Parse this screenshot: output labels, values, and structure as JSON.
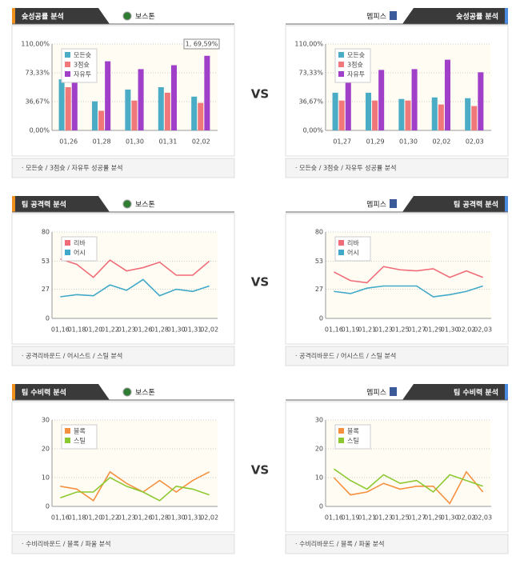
{
  "vs_label": "VS",
  "chart_data": [
    {
      "type": "bar",
      "title": "슛성공률 분석",
      "team": "보스톤",
      "footnote": "· 모든슛 / 3점슛 / 자유투 성공률 분석",
      "categories": [
        "01,26",
        "01,28",
        "01,30",
        "01,31",
        "02,02"
      ],
      "series": [
        {
          "name": "모든슛",
          "color": "#4bacc6",
          "values": [
            65,
            37,
            52,
            55,
            43
          ]
        },
        {
          "name": "3점슛",
          "color": "#f0787a",
          "values": [
            55,
            25,
            38,
            48,
            35
          ]
        },
        {
          "name": "자유투",
          "color": "#a040c8",
          "values": [
            62,
            88,
            78,
            83,
            95
          ]
        }
      ],
      "ylim": [
        0,
        110
      ],
      "yticks": [
        {
          "value": 0,
          "label": "0,00%"
        },
        {
          "value": 36.67,
          "label": "36,67%"
        },
        {
          "value": 73.33,
          "label": "73,33%"
        },
        {
          "value": 110,
          "label": "110,00%"
        }
      ],
      "annotation": "1, 69,59%"
    },
    {
      "type": "bar",
      "title": "슛성공률 분석",
      "team": "멤피스",
      "footnote": "· 모든슛 / 3점슛 / 자유투 성공률 분석",
      "categories": [
        "01,27",
        "01,29",
        "01,30",
        "02,02",
        "02,03"
      ],
      "series": [
        {
          "name": "모든슛",
          "color": "#4bacc6",
          "values": [
            48,
            48,
            40,
            42,
            41
          ]
        },
        {
          "name": "3점슛",
          "color": "#f0787a",
          "values": [
            38,
            38,
            38,
            33,
            31
          ]
        },
        {
          "name": "자유투",
          "color": "#a040c8",
          "values": [
            66,
            77,
            78,
            90,
            74
          ]
        }
      ],
      "ylim": [
        0,
        110
      ],
      "yticks": [
        {
          "value": 0,
          "label": "0,00%"
        },
        {
          "value": 36.67,
          "label": "36,67%"
        },
        {
          "value": 73.33,
          "label": "73,33%"
        },
        {
          "value": 110,
          "label": "110,00%"
        }
      ]
    },
    {
      "type": "line",
      "title": "팀 공격력 분석",
      "team": "보스톤",
      "footnote": "· 공격리바운드 / 어시스트 / 스틸 분석",
      "categories": [
        "01,16",
        "01,18",
        "01,20",
        "01,22",
        "01,23",
        "01,26",
        "01,28",
        "01,30",
        "01,31",
        "02,02"
      ],
      "series": [
        {
          "name": "리바",
          "color": "#f06c78",
          "values": [
            55,
            50,
            38,
            54,
            44,
            47,
            52,
            40,
            40,
            53
          ]
        },
        {
          "name": "어시",
          "color": "#40a8c8",
          "values": [
            20,
            22,
            21,
            31,
            26,
            36,
            21,
            27,
            25,
            30
          ]
        }
      ],
      "ylim": [
        0,
        80
      ],
      "yticks": [
        0,
        27,
        53,
        80
      ]
    },
    {
      "type": "line",
      "title": "팀 공격력 분석",
      "team": "멤피스",
      "footnote": "· 공격리바운드 / 어시스트 / 스틸 분석",
      "categories": [
        "01,16",
        "01,19",
        "01,21",
        "01,23",
        "01,25",
        "01,27",
        "01,29",
        "01,30",
        "02,02",
        "02,03"
      ],
      "series": [
        {
          "name": "리바",
          "color": "#f06c78",
          "values": [
            43,
            35,
            33,
            48,
            45,
            44,
            46,
            38,
            44,
            38
          ]
        },
        {
          "name": "어시",
          "color": "#40a8c8",
          "values": [
            25,
            23,
            28,
            30,
            30,
            30,
            20,
            22,
            25,
            30
          ]
        }
      ],
      "ylim": [
        0,
        80
      ],
      "yticks": [
        0,
        27,
        53,
        80
      ]
    },
    {
      "type": "line",
      "title": "팀 수비력 분석",
      "team": "보스톤",
      "footnote": "· 수비리바운드 / 블록 / 파울 분석",
      "categories": [
        "01,16",
        "01,18",
        "01,20",
        "01,22",
        "01,23",
        "01,26",
        "01,28",
        "01,30",
        "01,31",
        "02,02"
      ],
      "series": [
        {
          "name": "블록",
          "color": "#f59040",
          "values": [
            7,
            6,
            2,
            12,
            8,
            5,
            9,
            5,
            9,
            12
          ]
        },
        {
          "name": "스틸",
          "color": "#8cc830",
          "values": [
            3,
            5,
            5,
            10,
            7,
            5,
            2,
            7,
            6,
            4
          ]
        }
      ],
      "ylim": [
        0,
        30
      ],
      "yticks": [
        0,
        10,
        20,
        30
      ]
    },
    {
      "type": "line",
      "title": "팀 수비력 분석",
      "team": "멤피스",
      "footnote": "· 수비리바운드 / 블록 / 파울 분석",
      "categories": [
        "01,16",
        "01,19",
        "01,21",
        "01,23",
        "01,25",
        "01,27",
        "01,29",
        "01,30",
        "02,02",
        "02,03"
      ],
      "series": [
        {
          "name": "블록",
          "color": "#f59040",
          "values": [
            10,
            4,
            5,
            8,
            6,
            7,
            7,
            1,
            12,
            5
          ]
        },
        {
          "name": "스틸",
          "color": "#8cc830",
          "values": [
            13,
            9,
            6,
            11,
            8,
            9,
            5,
            11,
            9,
            7
          ]
        }
      ],
      "ylim": [
        0,
        30
      ],
      "yticks": [
        0,
        10,
        20,
        30
      ]
    }
  ]
}
